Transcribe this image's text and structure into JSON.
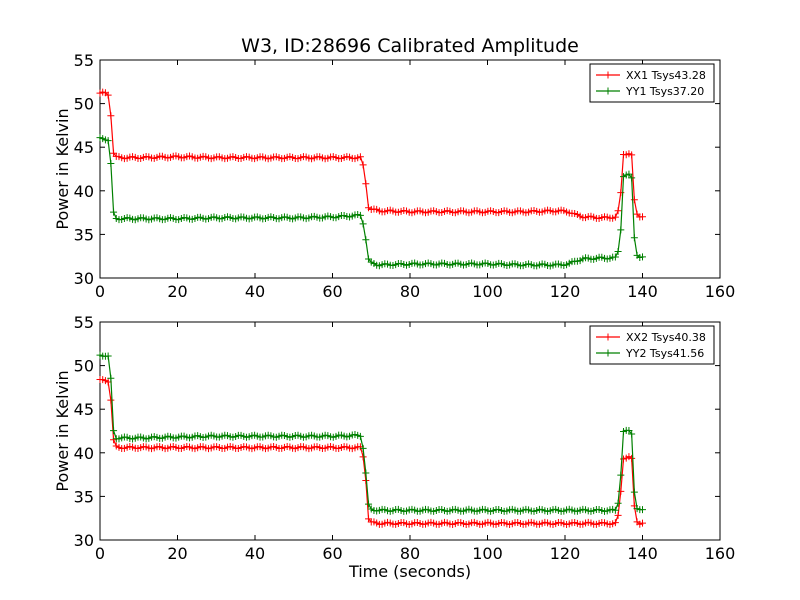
{
  "figure": {
    "title": "W3, ID:28696 Calibrated Amplitude",
    "xlabel": "Time (seconds)"
  },
  "chart_data": [
    {
      "type": "line",
      "title": "W3, ID:28696 Calibrated Amplitude",
      "xlabel": "",
      "ylabel": "Power in Kelvin",
      "xlim": [
        0,
        160
      ],
      "ylim": [
        30,
        55
      ],
      "xticks": [
        0,
        20,
        40,
        60,
        80,
        100,
        120,
        140,
        160
      ],
      "yticks": [
        30,
        35,
        40,
        45,
        50,
        55
      ],
      "grid": false,
      "legend_position": "top-right",
      "marker": "+",
      "series": [
        {
          "name": "XX1 Tsys43.28",
          "color": "#ff0000",
          "points": [
            [
              0,
              51.2
            ],
            [
              1,
              51.2
            ],
            [
              2,
              51.1
            ],
            [
              2.6,
              50.6
            ],
            [
              3.2,
              45.0
            ],
            [
              3.7,
              43.9
            ],
            [
              5,
              43.8
            ],
            [
              10,
              43.8
            ],
            [
              20,
              43.9
            ],
            [
              30,
              43.8
            ],
            [
              40,
              43.8
            ],
            [
              50,
              43.8
            ],
            [
              60,
              43.8
            ],
            [
              67.5,
              43.8
            ],
            [
              68.5,
              41.5
            ],
            [
              69,
              38.3
            ],
            [
              70,
              37.9
            ],
            [
              72,
              37.7
            ],
            [
              80,
              37.6
            ],
            [
              90,
              37.6
            ],
            [
              100,
              37.6
            ],
            [
              110,
              37.6
            ],
            [
              118,
              37.7
            ],
            [
              121,
              37.6
            ],
            [
              123,
              37.2
            ],
            [
              125,
              37.0
            ],
            [
              130,
              36.9
            ],
            [
              133.5,
              37.0
            ],
            [
              134.5,
              40.0
            ],
            [
              135,
              44.2
            ],
            [
              136.5,
              44.3
            ],
            [
              137.3,
              44.0
            ],
            [
              138,
              38.0
            ],
            [
              138.8,
              37.1
            ],
            [
              139.5,
              37.1
            ],
            [
              140.5,
              37.1
            ]
          ]
        },
        {
          "name": "YY1 Tsys37.20",
          "color": "#008000",
          "points": [
            [
              0,
              46.0
            ],
            [
              1,
              46.0
            ],
            [
              2,
              45.9
            ],
            [
              2.6,
              45.4
            ],
            [
              3.2,
              38.4
            ],
            [
              3.7,
              36.8
            ],
            [
              5,
              36.8
            ],
            [
              10,
              36.8
            ],
            [
              20,
              36.8
            ],
            [
              30,
              36.9
            ],
            [
              40,
              36.9
            ],
            [
              50,
              36.9
            ],
            [
              60,
              37.0
            ],
            [
              67.5,
              37.2
            ],
            [
              68.5,
              35.0
            ],
            [
              69,
              32.3
            ],
            [
              70,
              31.7
            ],
            [
              72,
              31.5
            ],
            [
              80,
              31.6
            ],
            [
              90,
              31.6
            ],
            [
              100,
              31.6
            ],
            [
              110,
              31.5
            ],
            [
              118,
              31.5
            ],
            [
              121,
              31.6
            ],
            [
              123,
              32.0
            ],
            [
              125,
              32.2
            ],
            [
              130,
              32.3
            ],
            [
              133.5,
              32.3
            ],
            [
              134.5,
              36.0
            ],
            [
              135,
              41.7
            ],
            [
              136.5,
              41.8
            ],
            [
              137.3,
              41.4
            ],
            [
              138,
              33.6
            ],
            [
              138.8,
              32.4
            ],
            [
              139.5,
              32.3
            ],
            [
              140.5,
              32.3
            ]
          ]
        }
      ]
    },
    {
      "type": "line",
      "title": "",
      "xlabel": "Time (seconds)",
      "ylabel": "Power in Kelvin",
      "xlim": [
        0,
        160
      ],
      "ylim": [
        30,
        55
      ],
      "xticks": [
        0,
        20,
        40,
        60,
        80,
        100,
        120,
        140,
        160
      ],
      "yticks": [
        30,
        35,
        40,
        45,
        50,
        55
      ],
      "grid": false,
      "legend_position": "top-right",
      "marker": "+",
      "series": [
        {
          "name": "XX2 Tsys40.38",
          "color": "#ff0000",
          "points": [
            [
              0,
              48.3
            ],
            [
              1,
              48.3
            ],
            [
              2,
              48.3
            ],
            [
              2.6,
              47.9
            ],
            [
              3.2,
              42.5
            ],
            [
              3.7,
              40.7
            ],
            [
              5,
              40.6
            ],
            [
              10,
              40.6
            ],
            [
              20,
              40.6
            ],
            [
              30,
              40.6
            ],
            [
              40,
              40.6
            ],
            [
              50,
              40.6
            ],
            [
              60,
              40.6
            ],
            [
              67.5,
              40.6
            ],
            [
              68.5,
              38.0
            ],
            [
              69,
              32.7
            ],
            [
              70,
              32.0
            ],
            [
              72,
              31.9
            ],
            [
              80,
              31.9
            ],
            [
              90,
              31.9
            ],
            [
              100,
              31.9
            ],
            [
              110,
              31.9
            ],
            [
              120,
              31.9
            ],
            [
              130,
              31.9
            ],
            [
              133.5,
              31.9
            ],
            [
              134.5,
              36.0
            ],
            [
              135,
              39.4
            ],
            [
              136.5,
              39.5
            ],
            [
              137.3,
              39.2
            ],
            [
              138,
              33.0
            ],
            [
              138.8,
              31.9
            ],
            [
              139.5,
              31.9
            ],
            [
              140.5,
              31.9
            ]
          ]
        },
        {
          "name": "YY2 Tsys41.56",
          "color": "#008000",
          "points": [
            [
              0,
              51.2
            ],
            [
              1,
              51.2
            ],
            [
              2,
              51.1
            ],
            [
              2.6,
              50.8
            ],
            [
              3.2,
              43.7
            ],
            [
              3.7,
              41.7
            ],
            [
              5,
              41.7
            ],
            [
              10,
              41.7
            ],
            [
              20,
              41.8
            ],
            [
              30,
              41.9
            ],
            [
              40,
              41.9
            ],
            [
              50,
              41.9
            ],
            [
              60,
              41.9
            ],
            [
              67.5,
              42.0
            ],
            [
              68.5,
              38.5
            ],
            [
              69,
              34.2
            ],
            [
              70,
              33.5
            ],
            [
              72,
              33.4
            ],
            [
              80,
              33.4
            ],
            [
              90,
              33.4
            ],
            [
              100,
              33.4
            ],
            [
              110,
              33.4
            ],
            [
              120,
              33.4
            ],
            [
              130,
              33.4
            ],
            [
              133.5,
              33.4
            ],
            [
              134.5,
              38.0
            ],
            [
              135,
              42.4
            ],
            [
              136.5,
              42.5
            ],
            [
              137.3,
              42.2
            ],
            [
              138,
              34.5
            ],
            [
              138.8,
              33.3
            ],
            [
              139.5,
              33.4
            ],
            [
              140.5,
              33.4
            ]
          ]
        }
      ]
    }
  ]
}
